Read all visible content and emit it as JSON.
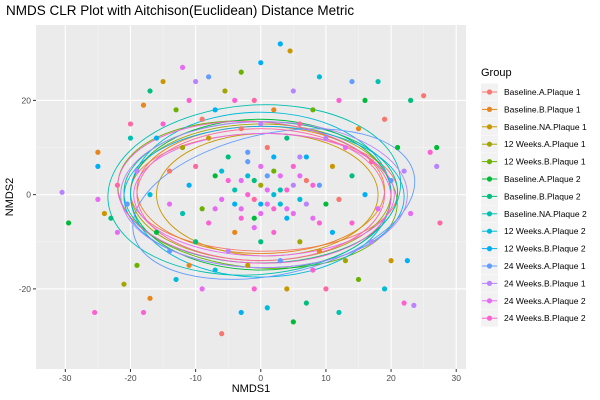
{
  "chart_data": {
    "type": "scatter",
    "title": "NMDS CLR Plot with Aitchison(Euclidean) Distance Metric",
    "xlabel": "NMDS1",
    "ylabel": "NMDS2",
    "xlim": [
      -34.5,
      31.5
    ],
    "ylim": [
      -37,
      36
    ],
    "xticks": [
      -30,
      -20,
      -10,
      0,
      10,
      20,
      30
    ],
    "yticks": [
      -20,
      0,
      20
    ],
    "grid": true,
    "ellipses": true,
    "legend": {
      "title": "Group",
      "position": "right"
    },
    "series": [
      {
        "name": "Baseline.A.Plaque 1",
        "color": "#F8766D",
        "cx": 0.5,
        "cy": 0.5,
        "rx": 20.5,
        "ry": 12.5,
        "angle": 0
      },
      {
        "name": "Baseline.B.Plaque 1",
        "color": "#E7861B",
        "cx": 0,
        "cy": 1,
        "rx": 19,
        "ry": 13.5,
        "angle": 0
      },
      {
        "name": "Baseline.NA.Plaque 1",
        "color": "#C99800",
        "cx": 1,
        "cy": 0,
        "rx": 17,
        "ry": 13,
        "angle": 0
      },
      {
        "name": "12 Weeks.A.Plaque 1",
        "color": "#A3A500",
        "cx": 0,
        "cy": 0.5,
        "rx": 20,
        "ry": 14.5,
        "angle": 0
      },
      {
        "name": "12 Weeks.B.Plaque 1",
        "color": "#6BB100",
        "cx": -0.5,
        "cy": 0,
        "rx": 21.5,
        "ry": 15.5,
        "angle": -5
      },
      {
        "name": "Baseline.A.Plaque 2",
        "color": "#00BA38",
        "cx": 0,
        "cy": 0,
        "rx": 20,
        "ry": 16,
        "angle": 0
      },
      {
        "name": "Baseline.B.Plaque 2",
        "color": "#00BF7D",
        "cx": 0,
        "cy": 0.5,
        "rx": 21,
        "ry": 15,
        "angle": 0
      },
      {
        "name": "Baseline.NA.Plaque 2",
        "color": "#00C0AF",
        "cx": -1,
        "cy": 1,
        "rx": 22.5,
        "ry": 18,
        "angle": 4
      },
      {
        "name": "12 Weeks.A.Plaque 2",
        "color": "#00BCD8",
        "cx": 0,
        "cy": 0,
        "rx": 20,
        "ry": 17.5,
        "angle": 0
      },
      {
        "name": "12 Weeks.B.Plaque 2",
        "color": "#00B0F6",
        "cx": 0.5,
        "cy": -0.5,
        "rx": 21.5,
        "ry": 15,
        "angle": 0
      },
      {
        "name": "24 Weeks.A.Plaque 1",
        "color": "#619CFF",
        "cx": 2,
        "cy": -2,
        "rx": 22,
        "ry": 15,
        "angle": 12
      },
      {
        "name": "24 Weeks.B.Plaque 1",
        "color": "#B983FF",
        "cx": 0.5,
        "cy": 0,
        "rx": 22,
        "ry": 15.5,
        "angle": 0
      },
      {
        "name": "24 Weeks.A.Plaque 2",
        "color": "#E76BF3",
        "cx": 0.5,
        "cy": 0,
        "rx": 20,
        "ry": 13,
        "angle": 0
      },
      {
        "name": "24 Weeks.B.Plaque 2",
        "color": "#FD61D1",
        "cx": -1,
        "cy": 0.5,
        "rx": 21,
        "ry": 15,
        "angle": -3
      },
      {
        "name": "",
        "color": "#FF67A4",
        "cx": 0,
        "cy": 0,
        "rx": 19,
        "ry": 14,
        "angle": 0
      }
    ],
    "points": [
      [
        -30.5,
        0.5,
        11
      ],
      [
        -29.5,
        -6,
        5
      ],
      [
        -25.5,
        -25,
        13
      ],
      [
        -25,
        9,
        1
      ],
      [
        -25,
        -1,
        12
      ],
      [
        -25,
        6,
        9
      ],
      [
        -24,
        -4,
        2
      ],
      [
        -23,
        -5,
        6
      ],
      [
        -22,
        2,
        14
      ],
      [
        -22,
        -8,
        12
      ],
      [
        -21,
        -19,
        3
      ],
      [
        -20.5,
        -2,
        10
      ],
      [
        -20,
        15,
        14
      ],
      [
        -20,
        12,
        7
      ],
      [
        -19,
        -15,
        4
      ],
      [
        -19,
        5,
        11
      ],
      [
        -18,
        19,
        1
      ],
      [
        -18,
        -25,
        13
      ],
      [
        -17,
        22,
        6
      ],
      [
        -17,
        -22,
        1
      ],
      [
        -17,
        0,
        8
      ],
      [
        -16,
        12,
        9
      ],
      [
        -16,
        -8,
        5
      ],
      [
        -15,
        24,
        2
      ],
      [
        -15,
        15,
        13
      ],
      [
        -14,
        -12,
        10
      ],
      [
        -14,
        5,
        0
      ],
      [
        -14,
        -2,
        12
      ],
      [
        -13,
        18,
        4
      ],
      [
        -13,
        -18,
        8
      ],
      [
        -12,
        27,
        12
      ],
      [
        -12,
        10,
        3
      ],
      [
        -12,
        -4,
        7
      ],
      [
        -11,
        20,
        13
      ],
      [
        -11,
        -15,
        1
      ],
      [
        -11,
        2,
        9
      ],
      [
        -10,
        24,
        11
      ],
      [
        -10,
        -10,
        6
      ],
      [
        -10,
        6,
        14
      ],
      [
        -9,
        16,
        0
      ],
      [
        -9,
        -20,
        12
      ],
      [
        -9,
        -3,
        4
      ],
      [
        -8,
        25,
        10
      ],
      [
        -8,
        12,
        2
      ],
      [
        -8,
        -6,
        13
      ],
      [
        -7,
        -16,
        8
      ],
      [
        -7,
        4,
        5
      ],
      [
        -7,
        18,
        9
      ],
      [
        -6,
        -29.5,
        0
      ],
      [
        -6,
        -1,
        12
      ],
      [
        -5.5,
        22,
        3
      ],
      [
        -5,
        -12,
        11
      ],
      [
        -5,
        8,
        6
      ],
      [
        -4,
        20,
        13
      ],
      [
        -4,
        -8,
        1
      ],
      [
        -4,
        1,
        7
      ],
      [
        -3,
        26,
        4
      ],
      [
        -3,
        -25,
        9
      ],
      [
        -3,
        14,
        0
      ],
      [
        -3,
        -3,
        12
      ],
      [
        -2,
        9,
        10
      ],
      [
        -2,
        -15,
        2
      ],
      [
        -2,
        4,
        8
      ],
      [
        -1,
        20,
        14
      ],
      [
        -1,
        -5,
        5
      ],
      [
        -1,
        -20,
        13
      ],
      [
        0,
        2,
        3
      ],
      [
        0,
        15,
        11
      ],
      [
        0,
        -10,
        6
      ],
      [
        0,
        28,
        9
      ],
      [
        1,
        -2,
        12
      ],
      [
        1,
        10,
        0
      ],
      [
        1,
        -24,
        8
      ],
      [
        2,
        5,
        4
      ],
      [
        2,
        -8,
        13
      ],
      [
        2,
        18,
        1
      ],
      [
        3,
        32,
        9
      ],
      [
        3,
        1,
        7
      ],
      [
        3,
        -14,
        10
      ],
      [
        4,
        -3,
        12
      ],
      [
        4,
        12,
        6
      ],
      [
        4,
        -20,
        2
      ],
      [
        4.5,
        30.5,
        2
      ],
      [
        5,
        6,
        13
      ],
      [
        5,
        -27,
        5
      ],
      [
        5,
        22,
        11
      ],
      [
        6,
        -1,
        8
      ],
      [
        6,
        -10,
        3
      ],
      [
        6,
        15,
        14
      ],
      [
        7,
        3,
        0
      ],
      [
        7,
        -23,
        6
      ],
      [
        7,
        8,
        9
      ],
      [
        8,
        -5,
        12
      ],
      [
        8,
        18,
        4
      ],
      [
        8,
        -16,
        13
      ],
      [
        9,
        2,
        10
      ],
      [
        9,
        -12,
        1
      ],
      [
        9,
        25,
        8
      ],
      [
        10,
        -2,
        5
      ],
      [
        10,
        12,
        11
      ],
      [
        10,
        -20,
        14
      ],
      [
        11,
        6,
        2
      ],
      [
        11,
        -8,
        9
      ],
      [
        12,
        20,
        13
      ],
      [
        12,
        -1,
        0
      ],
      [
        12,
        -25,
        7
      ],
      [
        13,
        10,
        12
      ],
      [
        13,
        -14,
        3
      ],
      [
        14,
        4,
        6
      ],
      [
        14,
        24,
        10
      ],
      [
        14,
        -6,
        13
      ],
      [
        15,
        -18,
        4
      ],
      [
        15,
        14,
        1
      ],
      [
        16,
        0,
        9
      ],
      [
        16,
        20,
        5
      ],
      [
        17,
        -10,
        11
      ],
      [
        17,
        7,
        14
      ],
      [
        18,
        24,
        7
      ],
      [
        18,
        -3,
        12
      ],
      [
        19,
        16,
        0
      ],
      [
        19,
        -20,
        8
      ],
      [
        20,
        3,
        10
      ],
      [
        20,
        -14,
        2
      ],
      [
        21,
        10,
        5
      ],
      [
        22,
        -23,
        13
      ],
      [
        22,
        5,
        11
      ],
      [
        22.5,
        -14,
        9
      ],
      [
        23,
        20,
        6
      ],
      [
        23,
        -4,
        12
      ],
      [
        23.5,
        -23.5,
        11
      ],
      [
        25,
        21,
        0
      ],
      [
        26,
        9,
        13
      ],
      [
        27,
        6,
        11
      ],
      [
        27,
        10,
        5
      ],
      [
        27.5,
        -6,
        14
      ],
      [
        -3,
        3,
        12
      ],
      [
        -2,
        0,
        13
      ],
      [
        -1,
        3,
        6
      ],
      [
        0,
        -2,
        9
      ],
      [
        1,
        4,
        10
      ],
      [
        2,
        0,
        8
      ],
      [
        3,
        4,
        12
      ],
      [
        4,
        1,
        13
      ],
      [
        5,
        2,
        11
      ],
      [
        -1,
        -1,
        14
      ],
      [
        0,
        6,
        12
      ],
      [
        2,
        -3,
        13
      ],
      [
        -4,
        -2,
        9
      ],
      [
        6,
        4,
        12
      ],
      [
        3,
        -2,
        8
      ],
      [
        -2,
        7,
        10
      ],
      [
        1,
        1,
        12
      ],
      [
        -5,
        3,
        13
      ],
      [
        7,
        -2,
        11
      ],
      [
        0,
        -4,
        12
      ],
      [
        4,
        -5,
        9
      ],
      [
        -3,
        -5,
        13
      ],
      [
        5,
        -4,
        12
      ],
      [
        -6,
        5,
        8
      ],
      [
        8,
        2,
        13
      ],
      [
        2,
        8,
        9
      ],
      [
        -1,
        -7,
        12
      ],
      [
        6,
        8,
        11
      ],
      [
        -7,
        -3,
        12
      ],
      [
        9,
        -6,
        13
      ]
    ]
  }
}
